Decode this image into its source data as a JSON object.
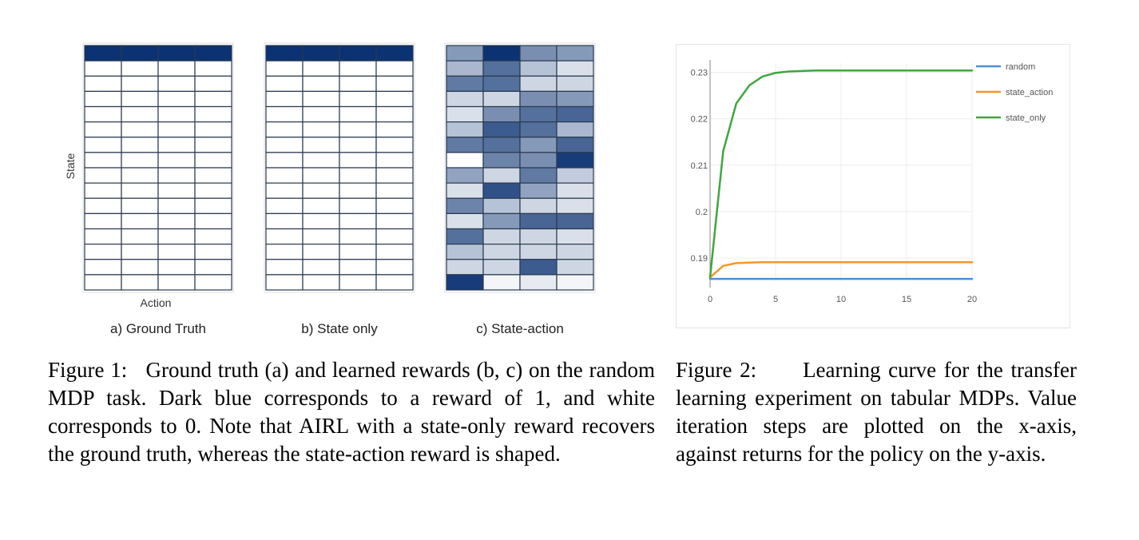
{
  "figure1": {
    "panels": [
      {
        "label": "a) Ground Truth"
      },
      {
        "label": "b) State only"
      },
      {
        "label": "c) State-action"
      }
    ],
    "ylabel": "State",
    "xlabel": "Action",
    "caption_label": "Figure 1:",
    "caption_text": "Ground truth (a) and learned rewards (b, c) on the random MDP task. Dark blue corresponds to a reward of 1, and white corresponds to 0. Note that AIRL with a state-only reward recovers the ground truth, whereas the state-action reward is shaped."
  },
  "figure2": {
    "caption_label": "Figure 2:",
    "caption_text": "Learning curve for the transfer learning experiment on tabular MDPs. Value iteration steps are plotted on the x-axis, against returns for the policy on the y-axis."
  },
  "chart_data": [
    {
      "type": "heatmap",
      "title": "a) Ground Truth",
      "xlabel": "Action",
      "ylabel": "State",
      "rows": 16,
      "cols": 4,
      "colormap": [
        "#ffffff",
        "#0b3272"
      ],
      "values": [
        [
          1,
          1,
          1,
          1
        ],
        [
          0,
          0,
          0,
          0
        ],
        [
          0,
          0,
          0,
          0
        ],
        [
          0,
          0,
          0,
          0
        ],
        [
          0,
          0,
          0,
          0
        ],
        [
          0,
          0,
          0,
          0
        ],
        [
          0,
          0,
          0,
          0
        ],
        [
          0,
          0,
          0,
          0
        ],
        [
          0,
          0,
          0,
          0
        ],
        [
          0,
          0,
          0,
          0
        ],
        [
          0,
          0,
          0,
          0
        ],
        [
          0,
          0,
          0,
          0
        ],
        [
          0,
          0,
          0,
          0
        ],
        [
          0,
          0,
          0,
          0
        ],
        [
          0,
          0,
          0,
          0
        ],
        [
          0,
          0,
          0,
          0
        ]
      ]
    },
    {
      "type": "heatmap",
      "title": "b) State only",
      "rows": 16,
      "cols": 4,
      "colormap": [
        "#ffffff",
        "#0b3272"
      ],
      "values": [
        [
          1,
          1,
          1,
          1
        ],
        [
          0,
          0,
          0,
          0
        ],
        [
          0,
          0,
          0,
          0
        ],
        [
          0,
          0,
          0,
          0
        ],
        [
          0,
          0,
          0,
          0
        ],
        [
          0,
          0,
          0,
          0
        ],
        [
          0,
          0,
          0,
          0
        ],
        [
          0,
          0,
          0,
          0
        ],
        [
          0,
          0,
          0,
          0
        ],
        [
          0,
          0,
          0,
          0
        ],
        [
          0,
          0,
          0,
          0
        ],
        [
          0,
          0,
          0,
          0
        ],
        [
          0,
          0,
          0,
          0
        ],
        [
          0,
          0,
          0,
          0
        ],
        [
          0,
          0,
          0,
          0
        ],
        [
          0,
          0,
          0,
          0
        ]
      ]
    },
    {
      "type": "heatmap",
      "title": "c) State-action",
      "rows": 16,
      "cols": 4,
      "colormap": [
        "#ffffff",
        "#0b3272"
      ],
      "values": [
        [
          0.5,
          1.0,
          0.55,
          0.5
        ],
        [
          0.35,
          0.7,
          0.3,
          0.15
        ],
        [
          0.65,
          0.7,
          0.2,
          0.2
        ],
        [
          0.2,
          0.2,
          0.55,
          0.5
        ],
        [
          0.15,
          0.55,
          0.7,
          0.75
        ],
        [
          0.3,
          0.8,
          0.7,
          0.35
        ],
        [
          0.65,
          0.7,
          0.5,
          0.75
        ],
        [
          0.0,
          0.6,
          0.55,
          0.95
        ],
        [
          0.45,
          0.2,
          0.65,
          0.25
        ],
        [
          0.15,
          0.85,
          0.45,
          0.15
        ],
        [
          0.6,
          0.3,
          0.2,
          0.15
        ],
        [
          0.15,
          0.5,
          0.75,
          0.75
        ],
        [
          0.7,
          0.2,
          0.2,
          0.15
        ],
        [
          0.3,
          0.2,
          0.2,
          0.2
        ],
        [
          0.2,
          0.2,
          0.8,
          0.2
        ],
        [
          0.95,
          0.05,
          0.1,
          0.05
        ]
      ]
    },
    {
      "type": "line",
      "xlim": [
        0,
        20
      ],
      "ylim": [
        0.185,
        0.232
      ],
      "xticks": [
        0,
        5,
        10,
        15,
        20
      ],
      "yticks": [
        0.19,
        0.2,
        0.21,
        0.22,
        0.23
      ],
      "ytick_labels": [
        "0.19",
        "0.2",
        "0.21",
        "0.22",
        "0.23"
      ],
      "grid": true,
      "legend": "right",
      "x": [
        0,
        1,
        2,
        3,
        4,
        5,
        6,
        7,
        8,
        9,
        10,
        11,
        12,
        13,
        14,
        15,
        16,
        17,
        18,
        19,
        20
      ],
      "series": [
        {
          "name": "random",
          "color": "#4a90d9",
          "values": [
            0.1855,
            0.1855,
            0.1855,
            0.1855,
            0.1855,
            0.1855,
            0.1855,
            0.1855,
            0.1855,
            0.1855,
            0.1855,
            0.1855,
            0.1855,
            0.1855,
            0.1855,
            0.1855,
            0.1855,
            0.1855,
            0.1855,
            0.1855,
            0.1855
          ]
        },
        {
          "name": "state_action",
          "color": "#f5952a",
          "values": [
            0.1858,
            0.1883,
            0.1889,
            0.189,
            0.1891,
            0.1891,
            0.1891,
            0.1891,
            0.1891,
            0.1891,
            0.1891,
            0.1891,
            0.1891,
            0.1891,
            0.1891,
            0.1891,
            0.1891,
            0.1891,
            0.1891,
            0.1891,
            0.1891
          ]
        },
        {
          "name": "state_only",
          "color": "#3fa63f",
          "values": [
            0.1858,
            0.213,
            0.2233,
            0.2272,
            0.2291,
            0.2299,
            0.2302,
            0.2303,
            0.2304,
            0.2304,
            0.2304,
            0.2304,
            0.2304,
            0.2304,
            0.2304,
            0.2304,
            0.2304,
            0.2304,
            0.2304,
            0.2304,
            0.2304
          ]
        }
      ]
    }
  ]
}
